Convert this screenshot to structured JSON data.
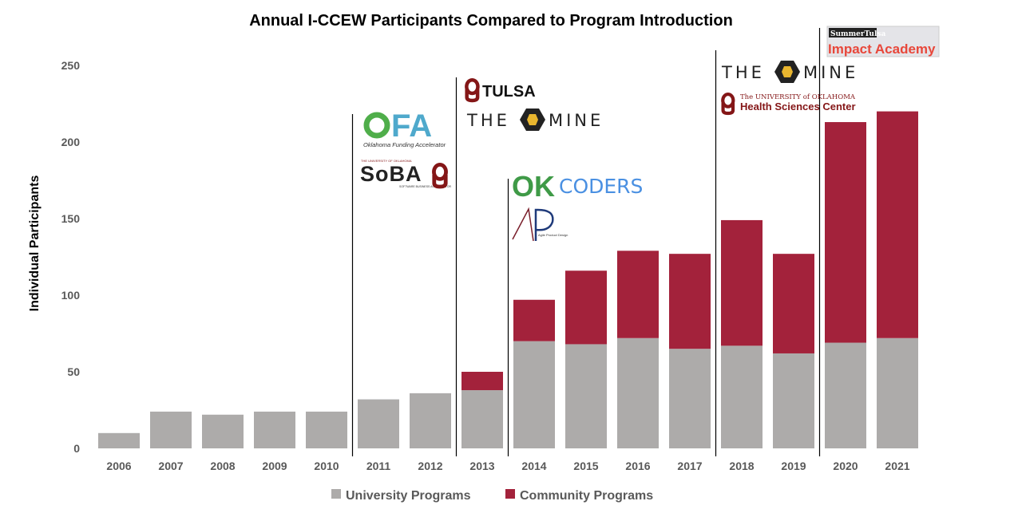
{
  "chart_data": {
    "type": "bar",
    "stacked": true,
    "title": "Annual I-CCEW Participants Compared to Program Introduction",
    "xlabel": "",
    "ylabel": "Individual Participants",
    "ylim": [
      0,
      250
    ],
    "yticks": [
      0,
      50,
      100,
      150,
      200,
      250
    ],
    "grid": false,
    "legend_position": "bottom",
    "categories": [
      "2006",
      "2007",
      "2008",
      "2009",
      "2010",
      "2011",
      "2012",
      "2013",
      "2014",
      "2015",
      "2016",
      "2017",
      "2018",
      "2019",
      "2020",
      "2021"
    ],
    "series": [
      {
        "name": "University Programs",
        "color": "#ADABAA",
        "values": [
          10,
          24,
          22,
          24,
          24,
          32,
          36,
          38,
          70,
          68,
          72,
          65,
          67,
          62,
          69,
          72
        ]
      },
      {
        "name": "Community Programs",
        "color": "#A3223B",
        "values": [
          0,
          0,
          0,
          0,
          0,
          0,
          0,
          12,
          27,
          48,
          57,
          62,
          82,
          65,
          144,
          148
        ]
      }
    ],
    "program_introductions": [
      {
        "before_year": "2011",
        "logos": [
          {
            "name": "OFA",
            "subtitle": "Oklahoma Funding Accelerator"
          },
          {
            "name": "SoBA",
            "subtitle": "THE UNIVERSITY OF OKLAHOMA · SOFTWARE BUSINESS ACCELERATOR"
          }
        ]
      },
      {
        "before_year": "2013",
        "logos": [
          {
            "name": "TULSA"
          },
          {
            "name": "THE MINE"
          }
        ]
      },
      {
        "before_year": "2014",
        "logos": [
          {
            "name": "OKCODERS"
          },
          {
            "name": "AP",
            "subtitle": "Agile Product Design"
          }
        ]
      },
      {
        "before_year": "2018",
        "logos": [
          {
            "name": "THE MINE"
          },
          {
            "name": "Health Sciences Center",
            "subtitle": "The UNIVERSITY of OKLAHOMA"
          }
        ]
      },
      {
        "before_year": "2020",
        "logos": [
          {
            "name": "Impact Academy",
            "subtitle": "SummerTulsa"
          }
        ]
      }
    ]
  }
}
